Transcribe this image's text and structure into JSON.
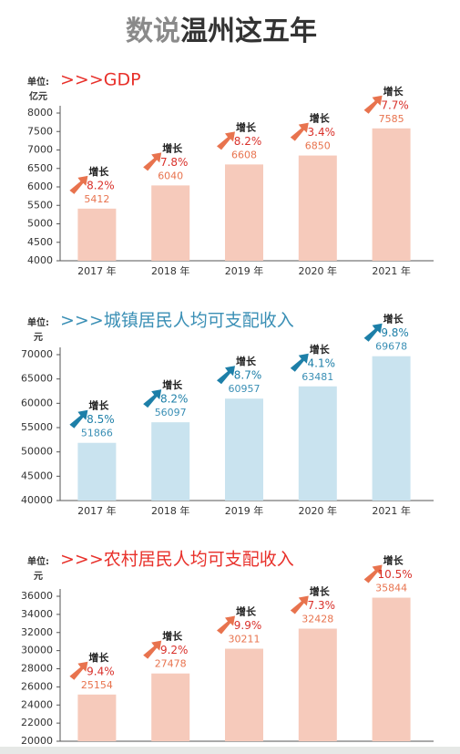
{
  "header": {
    "title_prefix": "数说",
    "title_main": "温州这五年"
  },
  "chart_data": [
    {
      "type": "bar",
      "title": ">>>GDP",
      "unit": [
        "单位:",
        "亿元"
      ],
      "categories": [
        "2017 年",
        "2018 年",
        "2019 年",
        "2020 年",
        "2021 年"
      ],
      "values": [
        5412,
        6040,
        6608,
        6850,
        7585
      ],
      "ylim": [
        4000,
        8000
      ],
      "yticks": [
        4000,
        4500,
        5000,
        5500,
        6000,
        6500,
        7000,
        7500,
        8000
      ],
      "color": "#f6cabb",
      "title_color": "#e8302a",
      "label_color": "#e8734e",
      "accent": "#e8734e",
      "growth_color": "#d9312b",
      "growth_label": "增长",
      "growth": [
        "8.2%",
        "7.8%",
        "8.2%",
        "3.4%",
        "7.7%"
      ]
    },
    {
      "type": "bar",
      "title": ">>>城镇居民人均可支配收入",
      "unit": [
        "单位:",
        "元"
      ],
      "categories": [
        "2017 年",
        "2018 年",
        "2019 年",
        "2020 年",
        "2021 年"
      ],
      "values": [
        51866,
        56097,
        60957,
        63481,
        69678
      ],
      "ylim": [
        40000,
        70000
      ],
      "yticks": [
        40000,
        45000,
        50000,
        55000,
        60000,
        65000,
        70000
      ],
      "color": "#c9e3ef",
      "title_color": "#3a8fb5",
      "label_color": "#3a8fb5",
      "accent": "#1d7fa8",
      "growth_color": "#1d7fa8",
      "growth_label": "增长",
      "growth": [
        "8.5%",
        "8.2%",
        "8.7%",
        "4.1%",
        "9.8%"
      ]
    },
    {
      "type": "bar",
      "title": ">>>农村居民人均可支配收入",
      "unit": [
        "单位:",
        "元"
      ],
      "values": [
        25154,
        27478,
        30211,
        32428,
        35844
      ],
      "ylim": [
        20000,
        36000
      ],
      "yticks": [
        20000,
        22000,
        24000,
        26000,
        28000,
        30000,
        32000,
        34000,
        36000
      ],
      "color": "#f6cabb",
      "title_color": "#e8302a",
      "label_color": "#e8734e",
      "accent": "#e8734e",
      "growth_color": "#d9312b",
      "growth_label": "增长",
      "growth": [
        "9.4%",
        "9.2%",
        "9.9%",
        "7.3%",
        "10.5%"
      ]
    }
  ]
}
